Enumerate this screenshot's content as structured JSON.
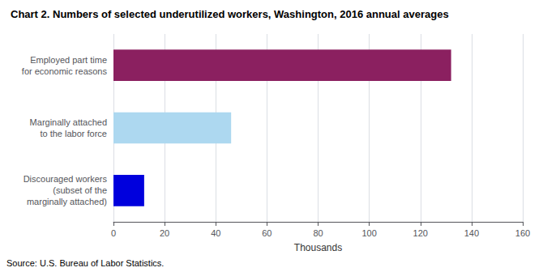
{
  "chart_data": {
    "type": "bar",
    "orientation": "horizontal",
    "title": "Chart 2. Numbers of selected underutilized workers, Washington, 2016 annual averages",
    "categories": [
      "Discouraged workers\n(subset of the\nmarginally attached)",
      "Marginally attached\nto the labor force",
      "Employed part time\nfor economic reasons"
    ],
    "values": [
      12,
      46,
      132
    ],
    "colors": [
      "#0000dd",
      "#add8f0",
      "#8b2060"
    ],
    "xlabel": "Thousands",
    "xlim": [
      0,
      160
    ],
    "xticks": [
      0,
      20,
      40,
      60,
      80,
      100,
      120,
      140,
      160
    ],
    "grid": true,
    "annotations": [
      "Source: U.S. Bureau of Labor Statistics."
    ]
  }
}
